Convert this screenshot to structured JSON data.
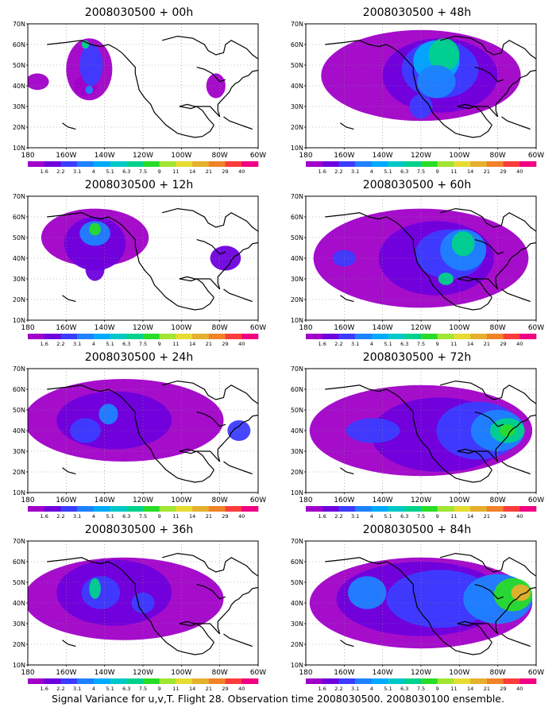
{
  "panels": [
    {
      "title": "2008030500 + 00h"
    },
    {
      "title": "2008030500 + 48h"
    },
    {
      "title": "2008030500 + 12h"
    },
    {
      "title": "2008030500 + 60h"
    },
    {
      "title": "2008030500 + 24h"
    },
    {
      "title": "2008030500 + 72h"
    },
    {
      "title": "2008030500 + 36h"
    },
    {
      "title": "2008030500 + 84h"
    }
  ],
  "lat_labels": [
    "70N",
    "60N",
    "50N",
    "40N",
    "30N",
    "20N",
    "10N"
  ],
  "lon_labels": [
    "180",
    "160W",
    "140W",
    "120W",
    "100W",
    "80W",
    "60W"
  ],
  "colorbar": {
    "levels": [
      "1.6",
      "2.2",
      "3.1",
      "4",
      "5.1",
      "6.3",
      "7.5",
      "9",
      "11",
      "14",
      "21",
      "29",
      "40"
    ],
    "colors": [
      "#a000c8",
      "#6e00dc",
      "#3c3cff",
      "#1e82ff",
      "#00aaff",
      "#00c8c8",
      "#00d28c",
      "#28dc28",
      "#a0e632",
      "#e6dc32",
      "#e6af2d",
      "#f08228",
      "#fa3c3c",
      "#f00082"
    ]
  },
  "footer": "Signal Variance for u,v,T. Flight 28. Observation time 2008030500. 2008030100 ensemble."
}
